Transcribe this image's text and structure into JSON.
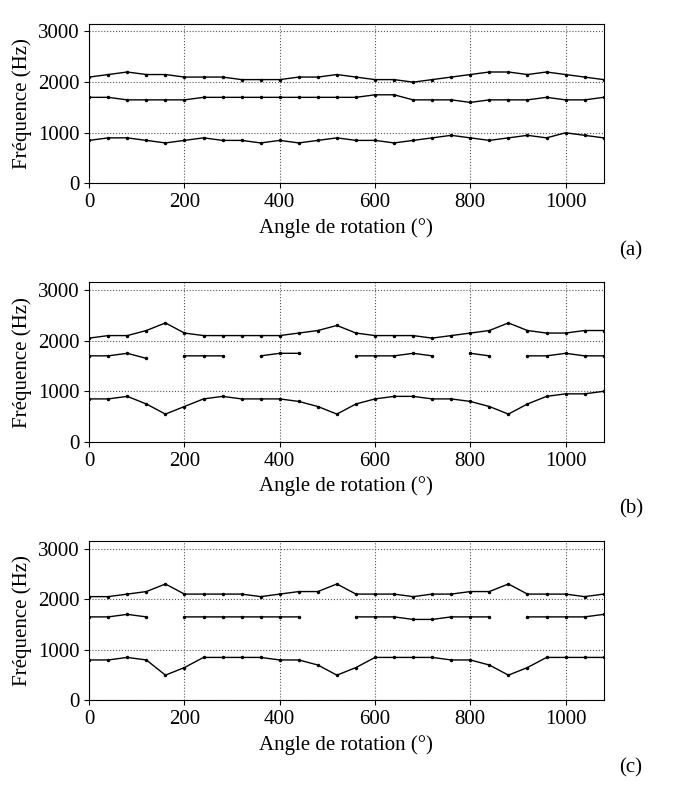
{
  "chart_data": [
    {
      "type": "line",
      "panel_label": "(a)",
      "x_label": "Angle de rotation (°)",
      "y_label": "Fréquence (Hz)",
      "x": [
        0,
        40,
        80,
        120,
        160,
        200,
        240,
        280,
        320,
        360,
        400,
        440,
        480,
        520,
        560,
        600,
        640,
        680,
        720,
        760,
        800,
        840,
        880,
        920,
        960,
        1000,
        1040,
        1080
      ],
      "series": [
        {
          "color": "#000000",
          "values": [
            2100,
            2150,
            2200,
            2150,
            2150,
            2100,
            2100,
            2100,
            2050,
            2050,
            2050,
            2100,
            2100,
            2150,
            2100,
            2050,
            2050,
            2000,
            2050,
            2100,
            2150,
            2200,
            2200,
            2150,
            2200,
            2150,
            2100,
            2050
          ]
        },
        {
          "color": "#000000",
          "values": [
            1700,
            1700,
            1650,
            1650,
            1650,
            1650,
            1700,
            1700,
            1700,
            1700,
            1700,
            1700,
            1700,
            1700,
            1700,
            1750,
            1750,
            1650,
            1650,
            1650,
            1600,
            1650,
            1650,
            1650,
            1700,
            1650,
            1650,
            1700
          ]
        },
        {
          "color": "#000000",
          "values": [
            850,
            900,
            900,
            850,
            800,
            850,
            900,
            850,
            850,
            800,
            850,
            800,
            850,
            900,
            850,
            850,
            800,
            850,
            900,
            950,
            900,
            850,
            900,
            950,
            900,
            1000,
            950,
            900
          ]
        }
      ],
      "xlim": [
        0,
        1080
      ],
      "xticks": [
        0,
        200,
        400,
        600,
        800,
        1000
      ],
      "ylim": [
        0,
        3150
      ],
      "yticks": [
        0,
        1000,
        2000,
        3000
      ],
      "grid": true
    },
    {
      "type": "line",
      "panel_label": "(b)",
      "x_label": "Angle de rotation (°)",
      "y_label": "Fréquence (Hz)",
      "x": [
        0,
        40,
        80,
        120,
        160,
        200,
        240,
        280,
        320,
        360,
        400,
        440,
        480,
        520,
        560,
        600,
        640,
        680,
        720,
        760,
        800,
        840,
        880,
        920,
        960,
        1000,
        1040,
        1080
      ],
      "series": [
        {
          "color": "#000000",
          "values": [
            2050,
            2100,
            2100,
            2200,
            2350,
            2150,
            2100,
            2100,
            2100,
            2100,
            2100,
            2150,
            2200,
            2300,
            2150,
            2100,
            2100,
            2100,
            2050,
            2100,
            2150,
            2200,
            2350,
            2200,
            2150,
            2150,
            2200,
            2200
          ]
        },
        {
          "color": "#000000",
          "values": [
            1700,
            1700,
            1750,
            1650,
            null,
            1700,
            1700,
            1700,
            null,
            1700,
            1750,
            1750,
            null,
            null,
            1700,
            1700,
            1700,
            1750,
            1700,
            null,
            1750,
            1700,
            null,
            1700,
            1700,
            1750,
            1700,
            1700
          ]
        },
        {
          "color": "#000000",
          "values": [
            850,
            850,
            900,
            750,
            550,
            700,
            850,
            900,
            850,
            850,
            850,
            800,
            700,
            550,
            750,
            850,
            900,
            900,
            850,
            850,
            800,
            700,
            550,
            750,
            900,
            950,
            950,
            1000
          ]
        }
      ],
      "xlim": [
        0,
        1080
      ],
      "xticks": [
        0,
        200,
        400,
        600,
        800,
        1000
      ],
      "ylim": [
        0,
        3150
      ],
      "yticks": [
        0,
        1000,
        2000,
        3000
      ],
      "grid": true
    },
    {
      "type": "line",
      "panel_label": "(c)",
      "x_label": "Angle de rotation (°)",
      "y_label": "Fréquence (Hz)",
      "x": [
        0,
        40,
        80,
        120,
        160,
        200,
        240,
        280,
        320,
        360,
        400,
        440,
        480,
        520,
        560,
        600,
        640,
        680,
        720,
        760,
        800,
        840,
        880,
        920,
        960,
        1000,
        1040,
        1080
      ],
      "series": [
        {
          "color": "#000000",
          "values": [
            2050,
            2050,
            2100,
            2150,
            2300,
            2100,
            2100,
            2100,
            2100,
            2050,
            2100,
            2150,
            2150,
            2300,
            2100,
            2100,
            2100,
            2050,
            2100,
            2100,
            2150,
            2150,
            2300,
            2100,
            2100,
            2100,
            2050,
            2100
          ]
        },
        {
          "color": "#000000",
          "values": [
            1650,
            1650,
            1700,
            1650,
            null,
            1650,
            1650,
            1650,
            1650,
            1650,
            1650,
            1650,
            null,
            null,
            1650,
            1650,
            1650,
            1600,
            1600,
            1650,
            1650,
            1650,
            null,
            1650,
            1650,
            1650,
            1650,
            1700
          ]
        },
        {
          "color": "#000000",
          "values": [
            800,
            800,
            850,
            800,
            500,
            650,
            850,
            850,
            850,
            850,
            800,
            800,
            700,
            500,
            650,
            850,
            850,
            850,
            850,
            800,
            800,
            700,
            500,
            650,
            850,
            850,
            850,
            850
          ]
        }
      ],
      "xlim": [
        0,
        1080
      ],
      "xticks": [
        0,
        200,
        400,
        600,
        800,
        1000
      ],
      "ylim": [
        0,
        3150
      ],
      "yticks": [
        0,
        1000,
        2000,
        3000
      ],
      "grid": true
    }
  ]
}
